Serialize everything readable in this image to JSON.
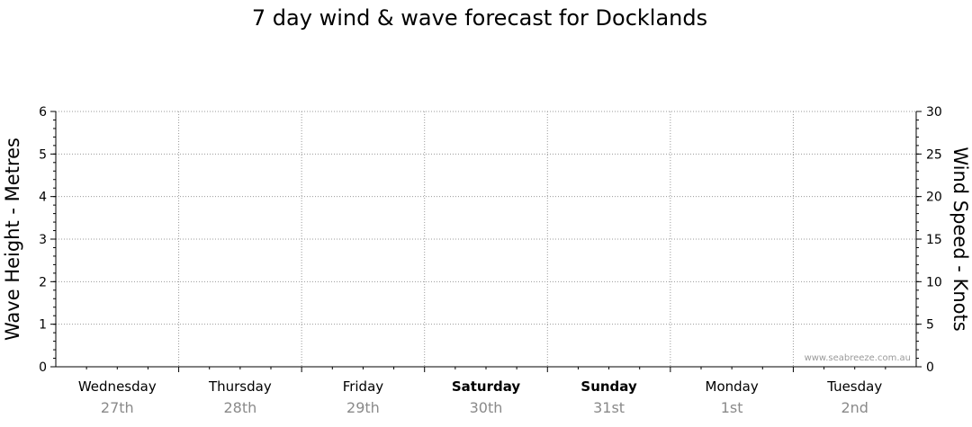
{
  "chart_data": {
    "type": "line",
    "title": "7 day wind & wave forecast for Docklands",
    "ylabel_left": "Wave Height - Metres",
    "ylabel_right": "Wind Speed - Knots",
    "ylim_left": [
      0,
      6
    ],
    "ylim_right": [
      0,
      30
    ],
    "yticks_left": [
      "0",
      "1",
      "2",
      "3",
      "4",
      "5",
      "6"
    ],
    "yticks_right": [
      "0",
      "5",
      "10",
      "15",
      "20",
      "25",
      "30"
    ],
    "days": [
      {
        "name": "Wednesday",
        "date": "27th",
        "weekend": false
      },
      {
        "name": "Thursday",
        "date": "28th",
        "weekend": false
      },
      {
        "name": "Friday",
        "date": "29th",
        "weekend": false
      },
      {
        "name": "Saturday",
        "date": "30th",
        "weekend": true
      },
      {
        "name": "Sunday",
        "date": "31st",
        "weekend": true
      },
      {
        "name": "Monday",
        "date": "1st",
        "weekend": false
      },
      {
        "name": "Tuesday",
        "date": "2nd",
        "weekend": false
      }
    ],
    "series": [],
    "grid": true,
    "watermark": "www.seabreeze.com.au"
  }
}
